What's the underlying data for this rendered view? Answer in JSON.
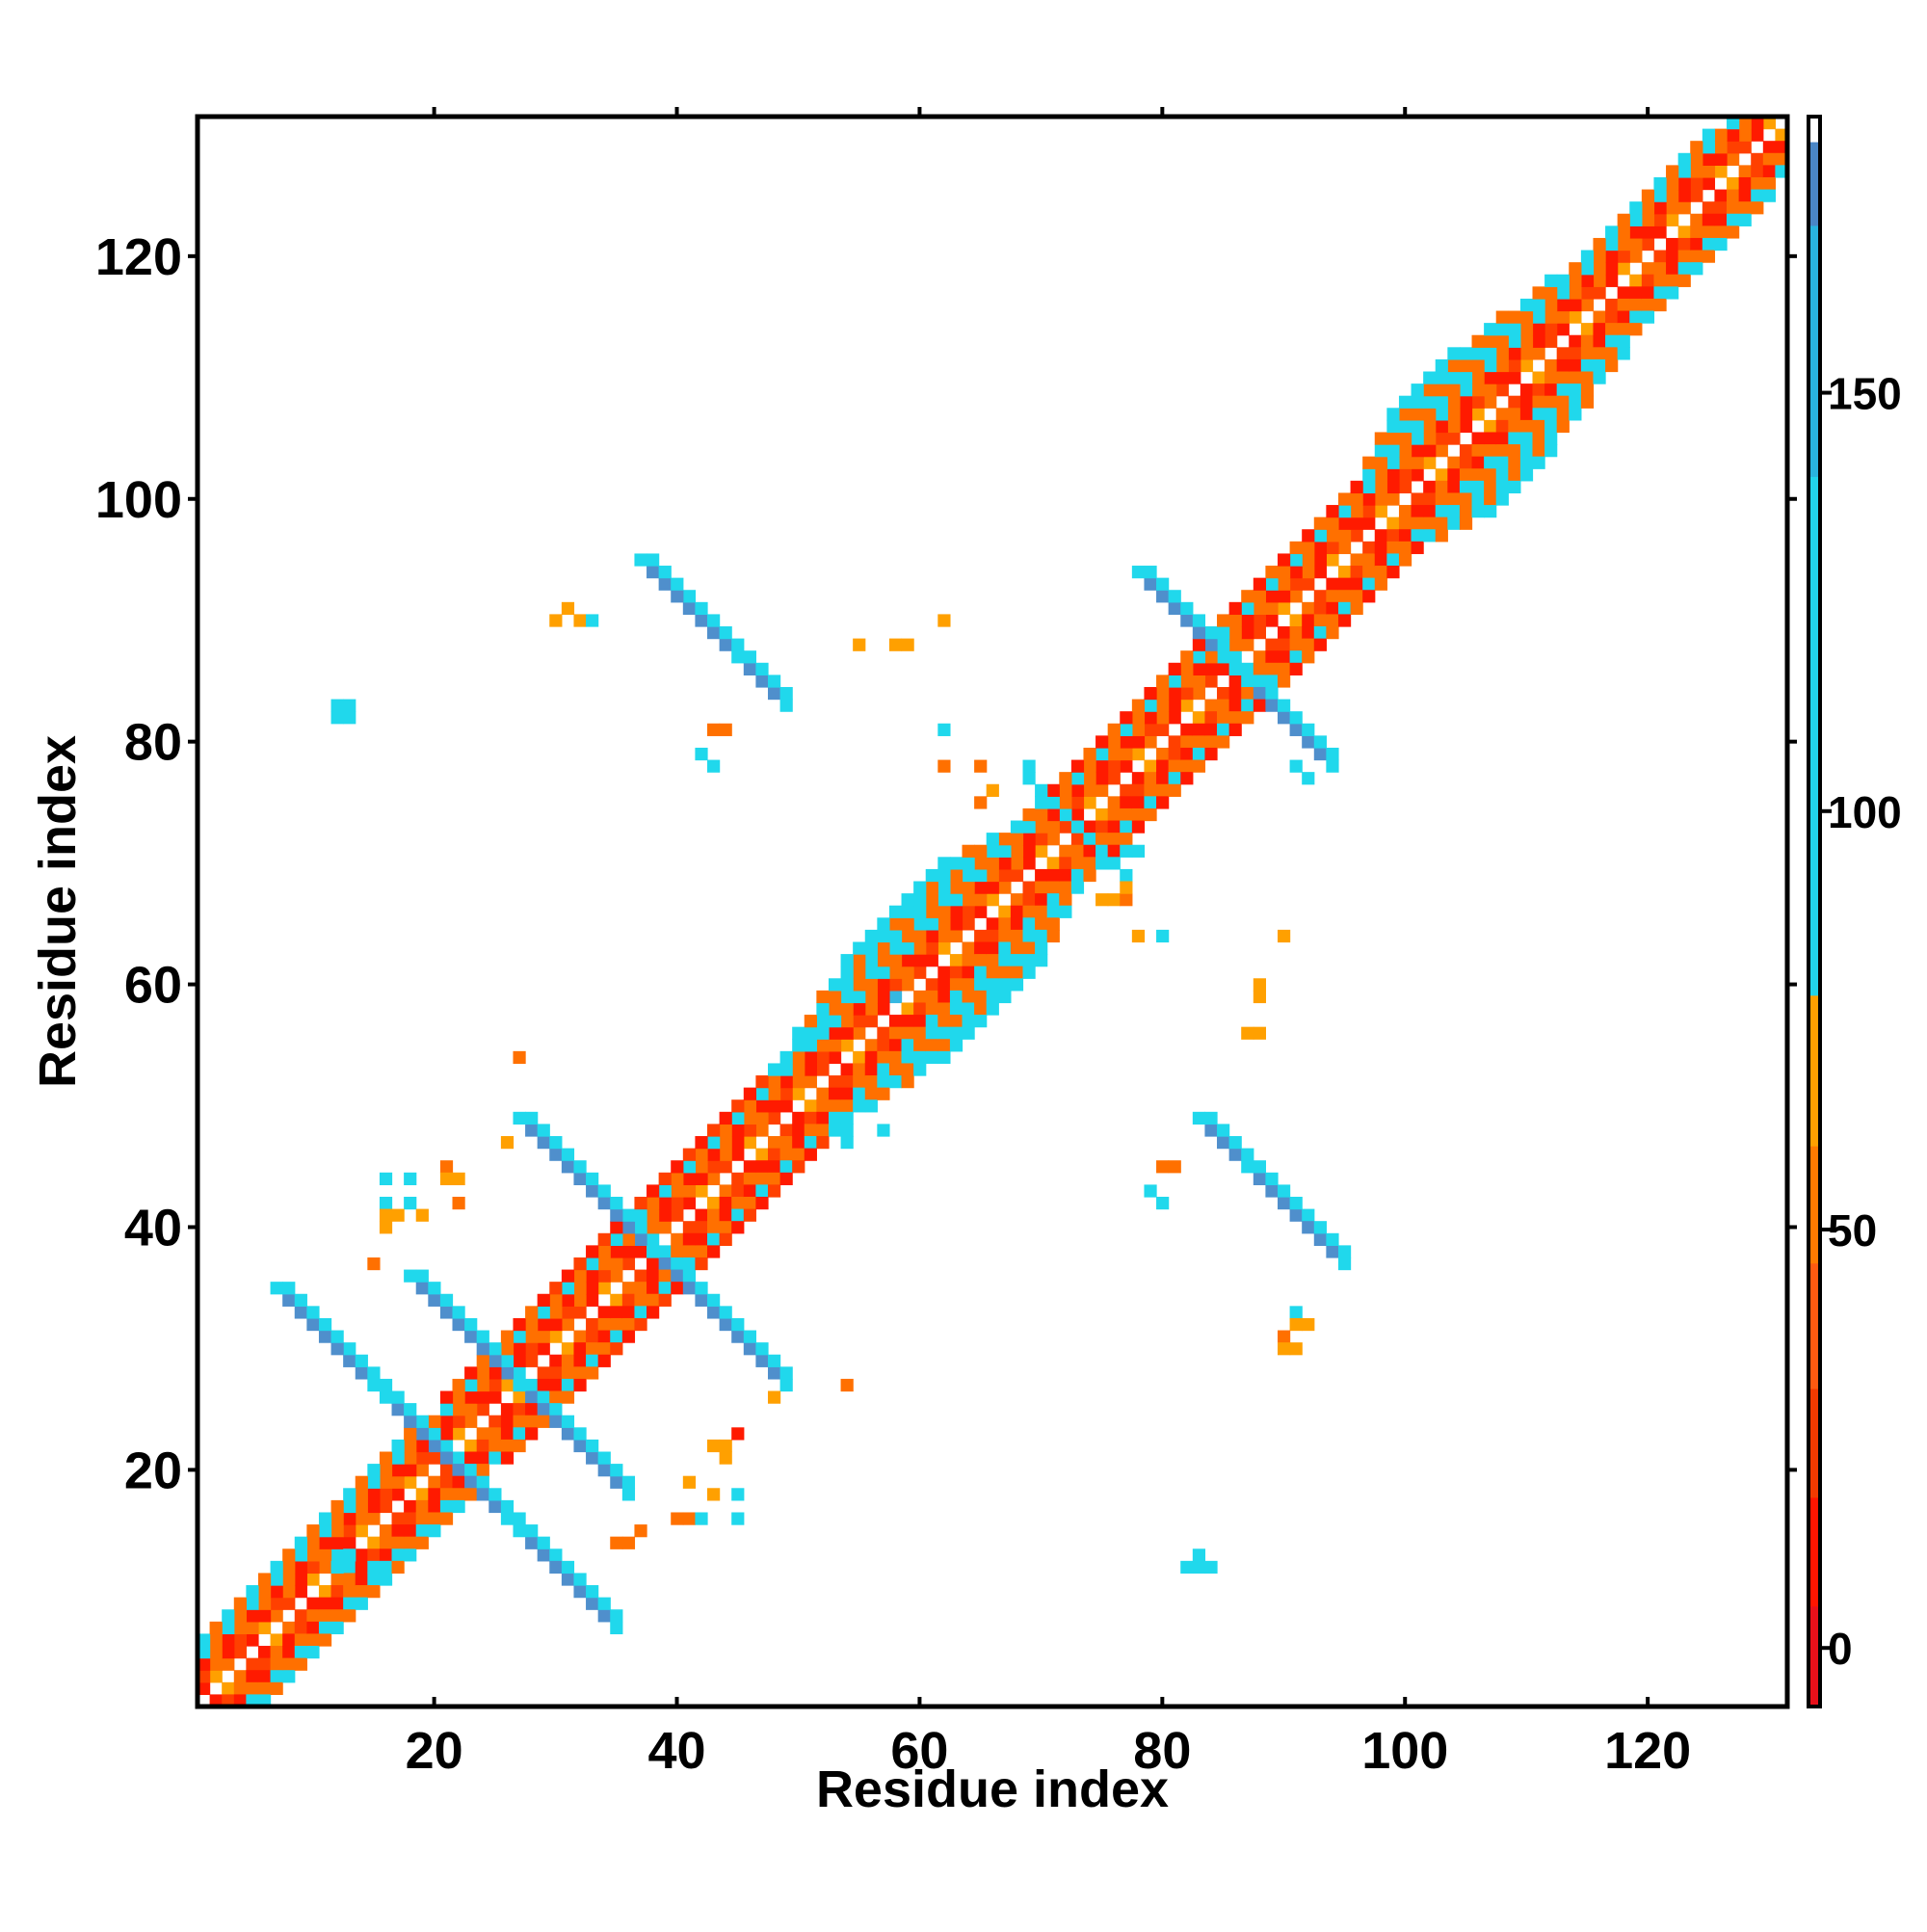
{
  "chart_data": {
    "type": "heatmap",
    "title": "",
    "xlabel": "Residue index",
    "ylabel": "Residue index",
    "xlim": [
      0.5,
      131.5
    ],
    "ylim": [
      0.5,
      131.5
    ],
    "x_ticks": [
      20,
      40,
      60,
      80,
      100,
      120
    ],
    "y_ticks": [
      20,
      40,
      60,
      80,
      100,
      120
    ],
    "grid": false,
    "colorbar": {
      "range": [
        -7,
        183
      ],
      "ticks": [
        0,
        50,
        100,
        150
      ],
      "bands": [
        {
          "from": -7,
          "to": 5,
          "color": "#e8101a"
        },
        {
          "from": 5,
          "to": 18,
          "color": "#ff1500"
        },
        {
          "from": 18,
          "to": 31,
          "color": "#f23a00"
        },
        {
          "from": 31,
          "to": 46,
          "color": "#ff5a10"
        },
        {
          "from": 46,
          "to": 60,
          "color": "#ff7a00"
        },
        {
          "from": 60,
          "to": 78,
          "color": "#ffa000"
        },
        {
          "from": 78,
          "to": 140,
          "color": "#22d3ea"
        },
        {
          "from": 140,
          "to": 170,
          "color": "#29b3de"
        },
        {
          "from": 170,
          "to": 180,
          "color": "#4a86c6"
        },
        {
          "from": 180,
          "to": 183,
          "color": "#ffffff"
        }
      ]
    },
    "palette": {
      "red": "#ff1a00",
      "darkred": "#e60000",
      "redorange": "#ff4000",
      "orange": "#ff7000",
      "amber": "#ffa000",
      "cyan": "#20d8ec",
      "skyblue": "#36b8e2",
      "steelblue": "#4f8fcc"
    },
    "diagonal_bands": [
      {
        "from": 1,
        "to": 131,
        "offset": 1,
        "pattern": [
          "orange",
          "redorange",
          "red",
          "amber"
        ]
      },
      {
        "from": 1,
        "to": 131,
        "offset": 2,
        "pattern": [
          "redorange",
          "orange",
          "red"
        ]
      },
      {
        "from": 1,
        "to": 131,
        "offset": 3,
        "pattern": [
          "red",
          "orange"
        ]
      },
      {
        "from": 1,
        "to": 131,
        "offset": 4,
        "pattern": [
          "orange",
          "cyan"
        ]
      },
      {
        "from": 1,
        "to": 19,
        "offset": 5,
        "pattern": [
          "cyan",
          "orange"
        ]
      },
      {
        "from": 21,
        "to": 28,
        "offset": 5,
        "pattern": [
          "red",
          "orange"
        ]
      },
      {
        "from": 29,
        "to": 36,
        "offset": 5,
        "pattern": [
          "red",
          "redorange"
        ]
      },
      {
        "from": 37,
        "to": 47,
        "offset": 5,
        "pattern": [
          "redorange",
          "red"
        ]
      },
      {
        "from": 48,
        "to": 70,
        "offset": 5,
        "pattern": [
          "orange",
          "cyan"
        ]
      },
      {
        "from": 71,
        "to": 83,
        "offset": 5,
        "pattern": [
          "red",
          "orange"
        ]
      },
      {
        "from": 84,
        "to": 96,
        "offset": 5,
        "pattern": [
          "orange",
          "red"
        ]
      },
      {
        "from": 97,
        "to": 125,
        "offset": 5,
        "pattern": [
          "cyan",
          "orange"
        ]
      },
      {
        "from": 50,
        "to": 66,
        "offset": 6,
        "pattern": [
          "cyan",
          "orange"
        ]
      },
      {
        "from": 97,
        "to": 112,
        "offset": 6,
        "pattern": [
          "cyan",
          "orange"
        ]
      },
      {
        "from": 52,
        "to": 64,
        "offset": 7,
        "pattern": [
          "cyan",
          "cyan",
          "orange"
        ]
      },
      {
        "from": 98,
        "to": 108,
        "offset": 7,
        "pattern": [
          "cyan",
          "orange"
        ]
      },
      {
        "from": 54,
        "to": 62,
        "offset": 8,
        "pattern": [
          "cyan",
          "cyan"
        ]
      },
      {
        "from": 99,
        "to": 104,
        "offset": 8,
        "pattern": [
          "cyan"
        ]
      }
    ],
    "antidiagonal_strips": [
      {
        "sum": 54,
        "from": 27,
        "to": 36,
        "width": 2,
        "color": "steelblue",
        "edge": "cyan"
      },
      {
        "sum": 42,
        "from": 13,
        "to": 26,
        "width": 2,
        "color": "steelblue",
        "edge": "cyan"
      },
      {
        "sum": 76,
        "from": 38,
        "to": 49,
        "width": 2,
        "color": "steelblue",
        "edge": "cyan"
      },
      {
        "sum": 42,
        "from": 27,
        "to": 35,
        "width": 2,
        "color": "steelblue",
        "edge": "cyan"
      },
      {
        "sum": 132,
        "from": 41,
        "to": 49,
        "width": 2,
        "color": "steelblue",
        "edge": "cyan"
      },
      {
        "sum": 132,
        "from": 87,
        "to": 95,
        "width": 2,
        "color": "steelblue",
        "edge": "cyan"
      },
      {
        "sum": 172,
        "from": 79,
        "to": 86,
        "width": 2,
        "color": "steelblue",
        "edge": "cyan"
      },
      {
        "sum": 172,
        "from": 87,
        "to": 94,
        "width": 2,
        "color": "steelblue",
        "edge": "cyan"
      },
      {
        "sum": 146,
        "from": 69,
        "to": 77,
        "width": 1,
        "color": "skyblue",
        "edge": "cyan"
      }
    ],
    "points": [
      [
        12,
        12,
        "cyan"
      ],
      [
        12,
        13,
        "cyan"
      ],
      [
        13,
        12,
        "cyan"
      ],
      [
        13,
        13,
        "cyan"
      ],
      [
        15,
        12,
        "cyan"
      ],
      [
        16,
        12,
        "cyan"
      ],
      [
        13,
        82,
        "cyan"
      ],
      [
        13,
        83,
        "cyan"
      ],
      [
        12,
        83,
        "cyan"
      ],
      [
        12,
        82,
        "cyan"
      ],
      [
        82,
        12,
        "cyan"
      ],
      [
        83,
        12,
        "cyan"
      ],
      [
        83,
        13,
        "cyan"
      ],
      [
        84,
        12,
        "cyan"
      ],
      [
        30,
        90,
        "amber"
      ],
      [
        31,
        91,
        "amber"
      ],
      [
        32,
        90,
        "amber"
      ],
      [
        33,
        90,
        "cyan"
      ],
      [
        43,
        81,
        "orange"
      ],
      [
        44,
        81,
        "orange"
      ],
      [
        42,
        79,
        "cyan"
      ],
      [
        43,
        78,
        "cyan"
      ],
      [
        55,
        88,
        "amber"
      ],
      [
        58,
        88,
        "amber"
      ],
      [
        59,
        88,
        "amber"
      ],
      [
        62,
        90,
        "amber"
      ],
      [
        62,
        81,
        "cyan"
      ],
      [
        62,
        78,
        "orange"
      ],
      [
        65,
        78,
        "orange"
      ],
      [
        66,
        76,
        "amber"
      ],
      [
        65,
        75,
        "orange"
      ],
      [
        69,
        78,
        "cyan"
      ],
      [
        75,
        67,
        "amber"
      ],
      [
        76,
        67,
        "amber"
      ],
      [
        77,
        67,
        "orange"
      ],
      [
        77,
        68,
        "amber"
      ],
      [
        78,
        64,
        "amber"
      ],
      [
        80,
        64,
        "cyan"
      ],
      [
        75,
        71,
        "cyan"
      ],
      [
        77,
        71,
        "cyan"
      ],
      [
        78,
        71,
        "cyan"
      ],
      [
        90,
        64,
        "amber"
      ],
      [
        88,
        60,
        "amber"
      ],
      [
        88,
        59,
        "amber"
      ],
      [
        87,
        56,
        "amber"
      ],
      [
        88,
        56,
        "amber"
      ],
      [
        58,
        59,
        "skyblue"
      ],
      [
        51,
        56,
        "cyan"
      ],
      [
        52,
        56,
        "cyan"
      ],
      [
        49,
        54,
        "cyan"
      ],
      [
        50,
        55,
        "cyan"
      ],
      [
        54,
        49,
        "cyan"
      ],
      [
        57,
        48,
        "cyan"
      ],
      [
        54,
        48,
        "cyan"
      ],
      [
        54,
        47,
        "cyan"
      ],
      [
        27,
        54,
        "orange"
      ],
      [
        26,
        47,
        "amber"
      ],
      [
        21,
        45,
        "orange"
      ],
      [
        22,
        44,
        "amber"
      ],
      [
        21,
        44,
        "amber"
      ],
      [
        16,
        44,
        "cyan"
      ],
      [
        18,
        44,
        "cyan"
      ],
      [
        16,
        42,
        "cyan"
      ],
      [
        18,
        42,
        "cyan"
      ],
      [
        16,
        41,
        "amber"
      ],
      [
        17,
        41,
        "amber"
      ],
      [
        19,
        41,
        "amber"
      ],
      [
        16,
        40,
        "amber"
      ],
      [
        15,
        37,
        "orange"
      ],
      [
        22,
        42,
        "orange"
      ],
      [
        43,
        22,
        "amber"
      ],
      [
        44,
        22,
        "amber"
      ],
      [
        45,
        23,
        "red"
      ],
      [
        44,
        21,
        "amber"
      ],
      [
        41,
        19,
        "amber"
      ],
      [
        43,
        18,
        "amber"
      ],
      [
        45,
        18,
        "cyan"
      ],
      [
        40,
        16,
        "orange"
      ],
      [
        41,
        16,
        "orange"
      ],
      [
        42,
        16,
        "cyan"
      ],
      [
        45,
        16,
        "cyan"
      ],
      [
        35,
        14,
        "orange"
      ],
      [
        36,
        14,
        "orange"
      ],
      [
        37,
        15,
        "orange"
      ],
      [
        48,
        26,
        "amber"
      ],
      [
        54,
        27,
        "orange"
      ],
      [
        80,
        45,
        "orange"
      ],
      [
        81,
        45,
        "orange"
      ],
      [
        79,
        43,
        "cyan"
      ],
      [
        80,
        42,
        "cyan"
      ],
      [
        91,
        33,
        "cyan"
      ],
      [
        91,
        32,
        "amber"
      ],
      [
        92,
        32,
        "amber"
      ],
      [
        90,
        31,
        "orange"
      ],
      [
        91,
        30,
        "amber"
      ],
      [
        90,
        30,
        "amber"
      ],
      [
        92,
        77,
        "cyan"
      ],
      [
        91,
        78,
        "cyan"
      ]
    ]
  }
}
